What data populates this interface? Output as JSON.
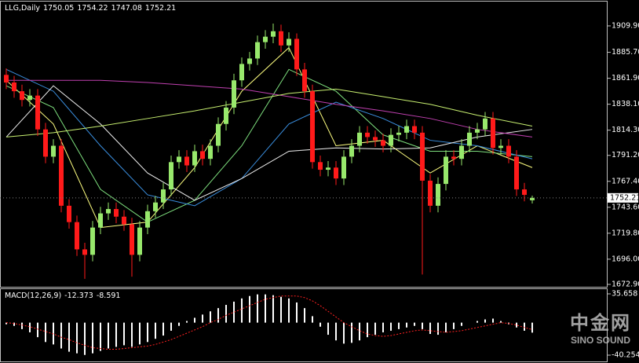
{
  "chart_data": [
    {
      "type": "candlestick",
      "title": "LLG,Daily",
      "header_values": [
        1750.05,
        1754.22,
        1747.08,
        1752.21
      ],
      "up_color": "#98e86c",
      "down_color": "#ff1a1a",
      "open": [
        1865,
        1858,
        1850,
        1842,
        1846,
        1815,
        1790,
        1800,
        1745,
        1730,
        1705,
        1700,
        1725,
        1738,
        1742,
        1735,
        1728,
        1700,
        1725,
        1740,
        1748,
        1760,
        1785,
        1790,
        1782,
        1795,
        1788,
        1800,
        1820,
        1835,
        1860,
        1875,
        1880,
        1895,
        1900,
        1905,
        1892,
        1898,
        1870,
        1850,
        1785,
        1778,
        1780,
        1770,
        1790,
        1800,
        1812,
        1808,
        1805,
        1800,
        1810,
        1812,
        1818,
        1812,
        1768,
        1745,
        1765,
        1790,
        1788,
        1800,
        1812,
        1815,
        1825,
        1798,
        1800,
        1790,
        1760,
        1750.05
      ],
      "high": [
        1871,
        1864,
        1856,
        1852,
        1852,
        1821,
        1806,
        1806,
        1751,
        1736,
        1711,
        1731,
        1744,
        1748,
        1748,
        1741,
        1734,
        1731,
        1746,
        1754,
        1766,
        1791,
        1796,
        1796,
        1801,
        1801,
        1806,
        1826,
        1841,
        1866,
        1881,
        1886,
        1901,
        1906,
        1912,
        1911,
        1904,
        1903,
        1876,
        1856,
        1791,
        1786,
        1786,
        1796,
        1806,
        1818,
        1818,
        1814,
        1811,
        1816,
        1818,
        1824,
        1824,
        1818,
        1774,
        1771,
        1796,
        1796,
        1806,
        1818,
        1821,
        1831,
        1831,
        1806,
        1806,
        1796,
        1766,
        1754.22
      ],
      "low": [
        1852,
        1844,
        1836,
        1836,
        1809,
        1784,
        1784,
        1739,
        1724,
        1699,
        1678,
        1694,
        1719,
        1732,
        1729,
        1722,
        1680,
        1694,
        1719,
        1734,
        1742,
        1754,
        1779,
        1776,
        1776,
        1782,
        1782,
        1794,
        1814,
        1829,
        1854,
        1869,
        1874,
        1889,
        1894,
        1886,
        1886,
        1864,
        1844,
        1779,
        1772,
        1772,
        1764,
        1764,
        1784,
        1794,
        1802,
        1799,
        1794,
        1794,
        1804,
        1806,
        1806,
        1682,
        1739,
        1739,
        1759,
        1782,
        1782,
        1794,
        1806,
        1809,
        1792,
        1792,
        1784,
        1754,
        1749,
        1747.08
      ],
      "close": [
        1858,
        1850,
        1842,
        1846,
        1815,
        1790,
        1800,
        1745,
        1730,
        1705,
        1700,
        1725,
        1738,
        1742,
        1735,
        1728,
        1700,
        1725,
        1740,
        1748,
        1760,
        1785,
        1790,
        1782,
        1795,
        1788,
        1800,
        1820,
        1835,
        1860,
        1875,
        1880,
        1895,
        1900,
        1905,
        1892,
        1898,
        1870,
        1850,
        1785,
        1778,
        1780,
        1770,
        1790,
        1800,
        1812,
        1808,
        1805,
        1800,
        1810,
        1812,
        1818,
        1812,
        1768,
        1745,
        1765,
        1790,
        1788,
        1800,
        1812,
        1815,
        1825,
        1798,
        1800,
        1790,
        1760,
        1755,
        1752.21
      ],
      "series": [
        {
          "color": "#ffff80",
          "x": [
            0,
            6,
            12,
            18,
            24,
            30,
            36,
            42,
            48,
            54,
            60,
            67
          ],
          "values": [
            1860,
            1820,
            1725,
            1730,
            1780,
            1850,
            1890,
            1800,
            1805,
            1775,
            1800,
            1780
          ]
        },
        {
          "color": "#7ee07e",
          "x": [
            0,
            6,
            12,
            18,
            24,
            30,
            36,
            42,
            48,
            54,
            60,
            67
          ],
          "values": [
            1855,
            1835,
            1760,
            1730,
            1750,
            1800,
            1870,
            1850,
            1810,
            1795,
            1795,
            1790
          ]
        },
        {
          "color": "#3a8fe0",
          "x": [
            0,
            6,
            12,
            18,
            24,
            30,
            36,
            42,
            48,
            54,
            60,
            67
          ],
          "values": [
            1870,
            1850,
            1800,
            1755,
            1745,
            1770,
            1820,
            1840,
            1825,
            1805,
            1800,
            1788
          ]
        },
        {
          "color": "#f0f0f0",
          "x": [
            0,
            6,
            12,
            18,
            24,
            30,
            36,
            42,
            48,
            54,
            60,
            67
          ],
          "values": [
            1808,
            1855,
            1820,
            1775,
            1750,
            1770,
            1795,
            1798,
            1797,
            1798,
            1808,
            1815
          ]
        },
        {
          "color": "#c040b0",
          "x": [
            0,
            6,
            12,
            18,
            24,
            30,
            36,
            42,
            48,
            54,
            60,
            67
          ],
          "values": [
            1860,
            1860,
            1860,
            1858,
            1855,
            1852,
            1845,
            1838,
            1832,
            1825,
            1815,
            1808
          ]
        },
        {
          "color": "#c8f070",
          "x": [
            0,
            6,
            12,
            18,
            24,
            30,
            36,
            42,
            48,
            54,
            60,
            67
          ],
          "values": [
            1808,
            1812,
            1818,
            1825,
            1832,
            1840,
            1848,
            1852,
            1845,
            1838,
            1828,
            1818
          ]
        }
      ],
      "last": 1752.21,
      "ylim": [
        1670.7,
        1932.2
      ],
      "yticks": [
        {
          "value": 1909.9,
          "label": "1909.90"
        },
        {
          "value": 1885.7,
          "label": "1885.70"
        },
        {
          "value": 1861.9,
          "label": "1861.90"
        },
        {
          "value": 1838.1,
          "label": "1838.10"
        },
        {
          "value": 1814.3,
          "label": "1814.30"
        },
        {
          "value": 1791.2,
          "label": "1791.20"
        },
        {
          "value": 1767.4,
          "label": "1767.40"
        },
        {
          "value": 1743.6,
          "label": "1743.60"
        },
        {
          "value": 1719.8,
          "label": "1719.80"
        },
        {
          "value": 1696,
          "label": "1696.00"
        },
        {
          "value": 1672.9,
          "label": "1672.90"
        }
      ]
    },
    {
      "type": "macd",
      "title": "MACD(12,26,9)",
      "header_values": [
        -12.373,
        -8.591
      ],
      "hist_color": "#ffffff",
      "signal_color": "#ff2020",
      "values": [
        -2,
        -4,
        -8,
        -12,
        -18,
        -24,
        -27,
        -32,
        -36,
        -38,
        -40,
        -38,
        -35,
        -32,
        -30,
        -28,
        -30,
        -27,
        -24,
        -20,
        -16,
        -10,
        -4,
        2,
        6,
        10,
        14,
        18,
        22,
        26,
        30,
        33,
        35,
        35,
        34,
        32,
        30,
        25,
        18,
        8,
        -5,
        -15,
        -22,
        -26,
        -25,
        -22,
        -18,
        -15,
        -12,
        -10,
        -8,
        -6,
        -4,
        -8,
        -14,
        -15,
        -12,
        -8,
        -4,
        0,
        2,
        4,
        5,
        2,
        -2,
        -6,
        -10,
        -12.373
      ],
      "signal": [
        0,
        -1,
        -3,
        -5,
        -8,
        -11,
        -14,
        -18,
        -21,
        -25,
        -28,
        -31,
        -32,
        -33,
        -33,
        -32,
        -31,
        -30,
        -29,
        -27,
        -24,
        -21,
        -17,
        -13,
        -9,
        -5,
        0,
        4,
        9,
        13,
        17,
        21,
        25,
        29,
        31,
        33,
        33,
        33,
        31,
        27,
        21,
        14,
        7,
        0,
        -5,
        -10,
        -14,
        -16,
        -17,
        -16,
        -14,
        -12,
        -10,
        -9,
        -10,
        -11,
        -12,
        -11,
        -10,
        -8,
        -6,
        -4,
        -2,
        0,
        -1,
        -3,
        -6,
        -8.591
      ],
      "ylim": [
        -40.254,
        35.658
      ],
      "yticks": [
        35.658,
        -40.254
      ]
    }
  ],
  "watermark": {
    "brand": "中金网",
    "en": "SINO SOUND"
  }
}
